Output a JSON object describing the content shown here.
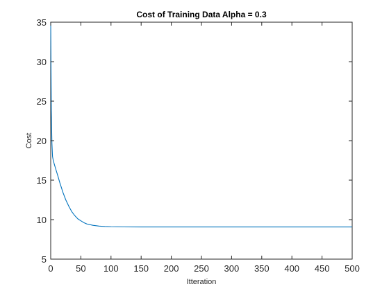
{
  "chart_data": {
    "type": "line",
    "title": "Cost of Training Data Alpha = 0.3",
    "xlabel": "Itteration",
    "ylabel": "Cost",
    "xlim": [
      0,
      500
    ],
    "ylim": [
      5,
      35
    ],
    "xticks": [
      0,
      50,
      100,
      150,
      200,
      250,
      300,
      350,
      400,
      450,
      500
    ],
    "yticks": [
      5,
      10,
      15,
      20,
      25,
      30,
      35
    ],
    "grid": false,
    "legend": "none",
    "line_color": "#0072BD",
    "axis_color": "#262626",
    "series": [
      {
        "x": [
          0,
          1,
          2,
          3,
          4,
          5,
          6,
          8,
          10,
          12,
          15,
          18,
          20,
          25,
          30,
          35,
          40,
          45,
          50,
          55,
          60,
          70,
          80,
          90,
          100,
          120,
          150,
          200,
          250,
          300,
          350,
          400,
          450,
          500
        ],
        "y": [
          35,
          23.8,
          19.7,
          18.0,
          17.6,
          17.3,
          17.0,
          16.5,
          16.0,
          15.5,
          14.7,
          14.0,
          13.5,
          12.5,
          11.7,
          11.0,
          10.5,
          10.1,
          9.85,
          9.62,
          9.45,
          9.28,
          9.18,
          9.13,
          9.1,
          9.08,
          9.07,
          9.07,
          9.07,
          9.07,
          9.07,
          9.07,
          9.07,
          9.07
        ]
      }
    ]
  }
}
